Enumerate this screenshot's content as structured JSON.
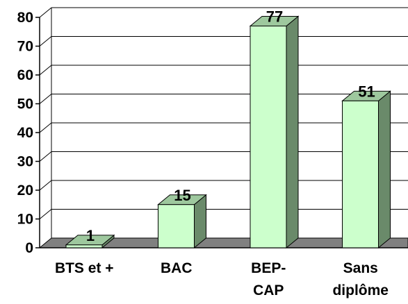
{
  "chart_data": {
    "type": "bar",
    "title": "",
    "xlabel": "",
    "ylabel": "",
    "categories": [
      "BTS et +",
      "BAC",
      "BEP-\nCAP",
      "Sans\ndiplôme"
    ],
    "values": [
      1,
      15,
      77,
      51
    ],
    "data_labels": [
      "1",
      "15",
      "77",
      "51"
    ],
    "yticks": [
      0,
      10,
      20,
      30,
      40,
      50,
      60,
      70,
      80
    ],
    "ylim": [
      0,
      80
    ],
    "grid": true,
    "style": "3d-column",
    "colors": {
      "bar_front": "#ccffcc",
      "bar_side": "#6a8a6a",
      "bar_top": "#9ec89e",
      "floor": "#808080",
      "grid": "#000000"
    }
  }
}
